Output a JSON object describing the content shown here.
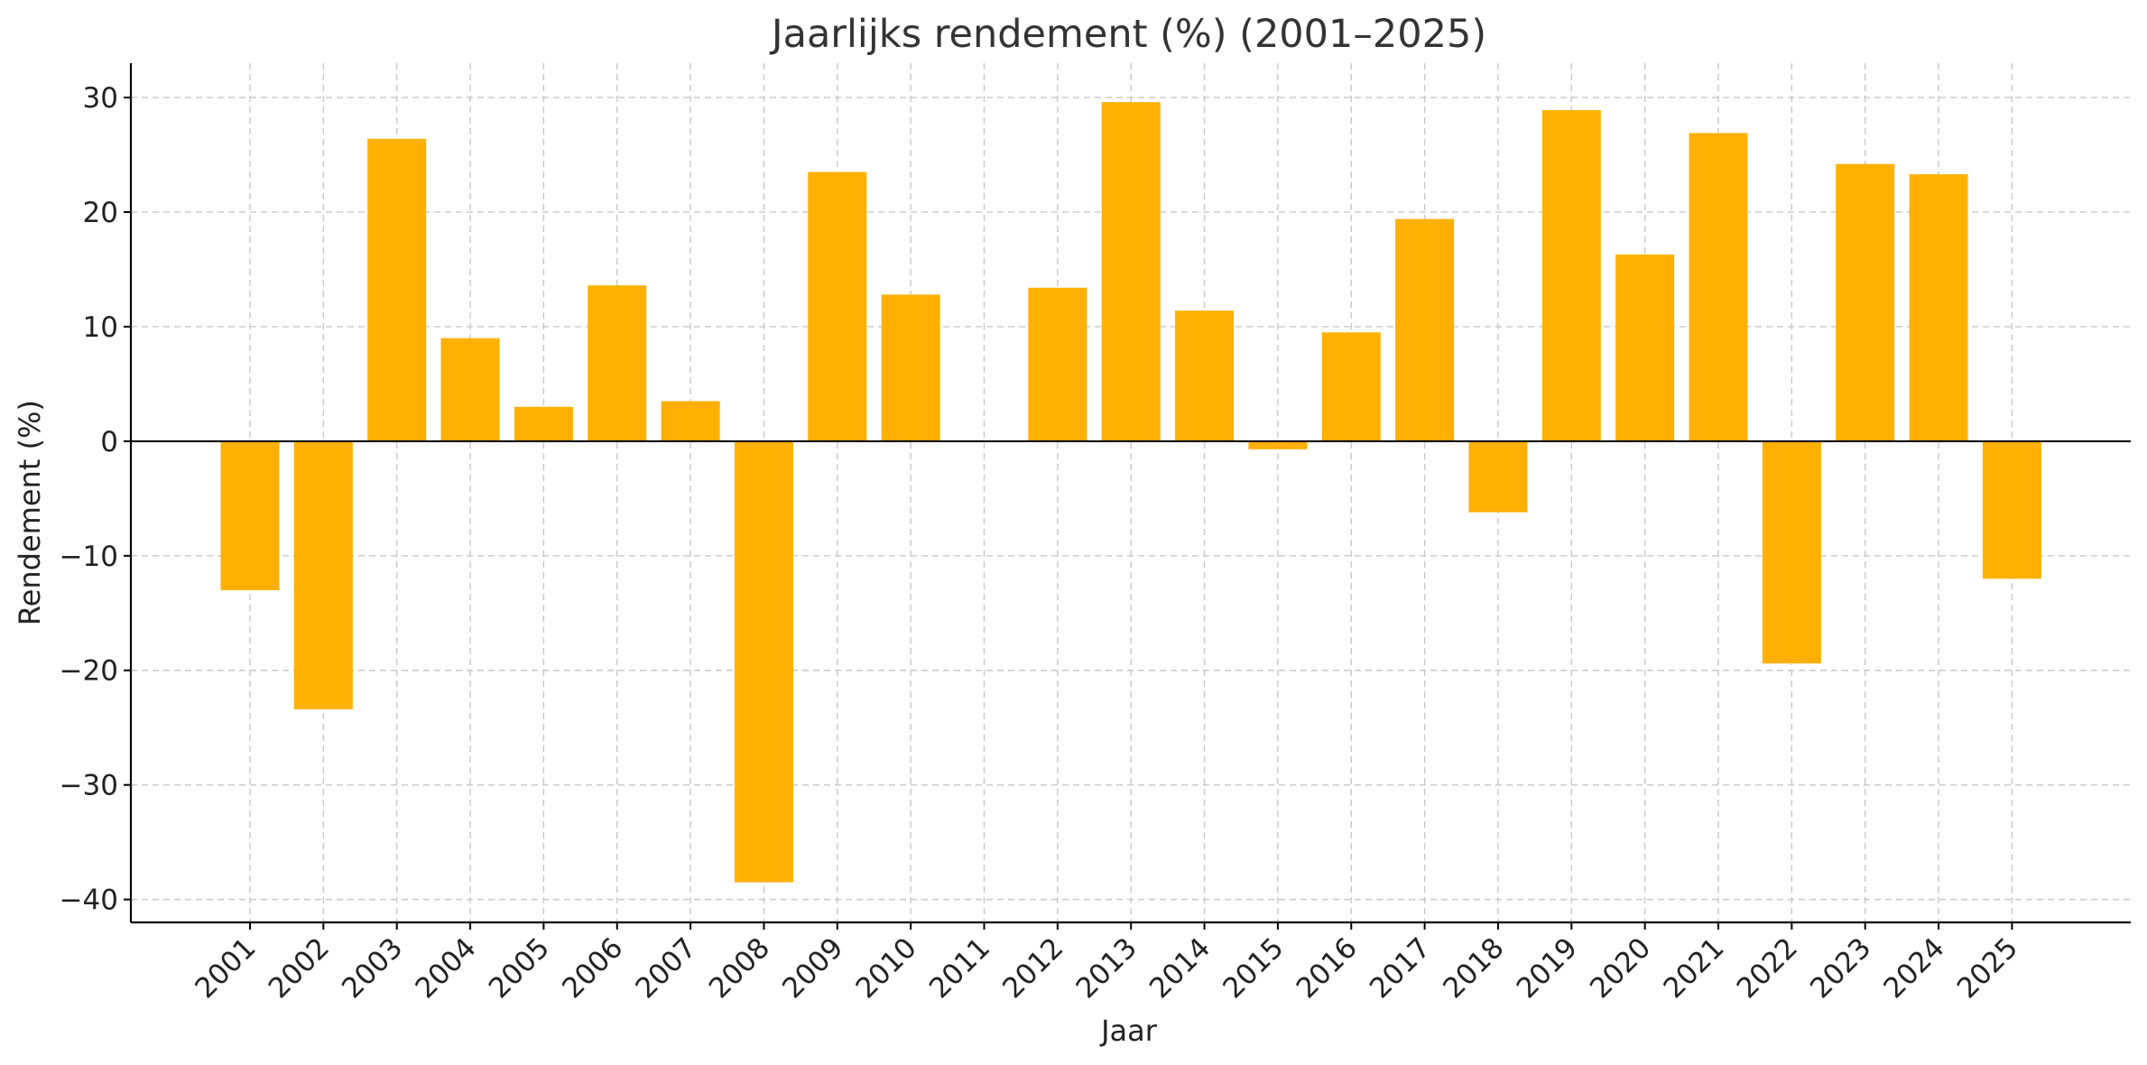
{
  "chart_data": {
    "type": "bar",
    "title": "Jaarlijks rendement (%) (2001–2025)",
    "xlabel": "Jaar",
    "ylabel": "Rendement (%)",
    "categories": [
      "2001",
      "2002",
      "2003",
      "2004",
      "2005",
      "2006",
      "2007",
      "2008",
      "2009",
      "2010",
      "2011",
      "2012",
      "2013",
      "2014",
      "2015",
      "2016",
      "2017",
      "2018",
      "2019",
      "2020",
      "2021",
      "2022",
      "2023",
      "2024",
      "2025"
    ],
    "values": [
      -13.0,
      -23.4,
      26.4,
      9.0,
      3.0,
      13.6,
      3.5,
      -38.5,
      23.5,
      12.8,
      0.0,
      13.4,
      29.6,
      11.4,
      -0.7,
      9.5,
      19.4,
      -6.2,
      28.9,
      16.3,
      26.9,
      -19.4,
      24.2,
      23.3,
      -12.0
    ],
    "ylim": [
      -42,
      33
    ],
    "yticks": [
      -40,
      -30,
      -20,
      -10,
      0,
      10,
      20,
      30
    ],
    "ytick_labels": [
      "−40",
      "−30",
      "−20",
      "−10",
      "0",
      "10",
      "20",
      "30"
    ],
    "grid": true,
    "bar_color": "#ffb000"
  }
}
